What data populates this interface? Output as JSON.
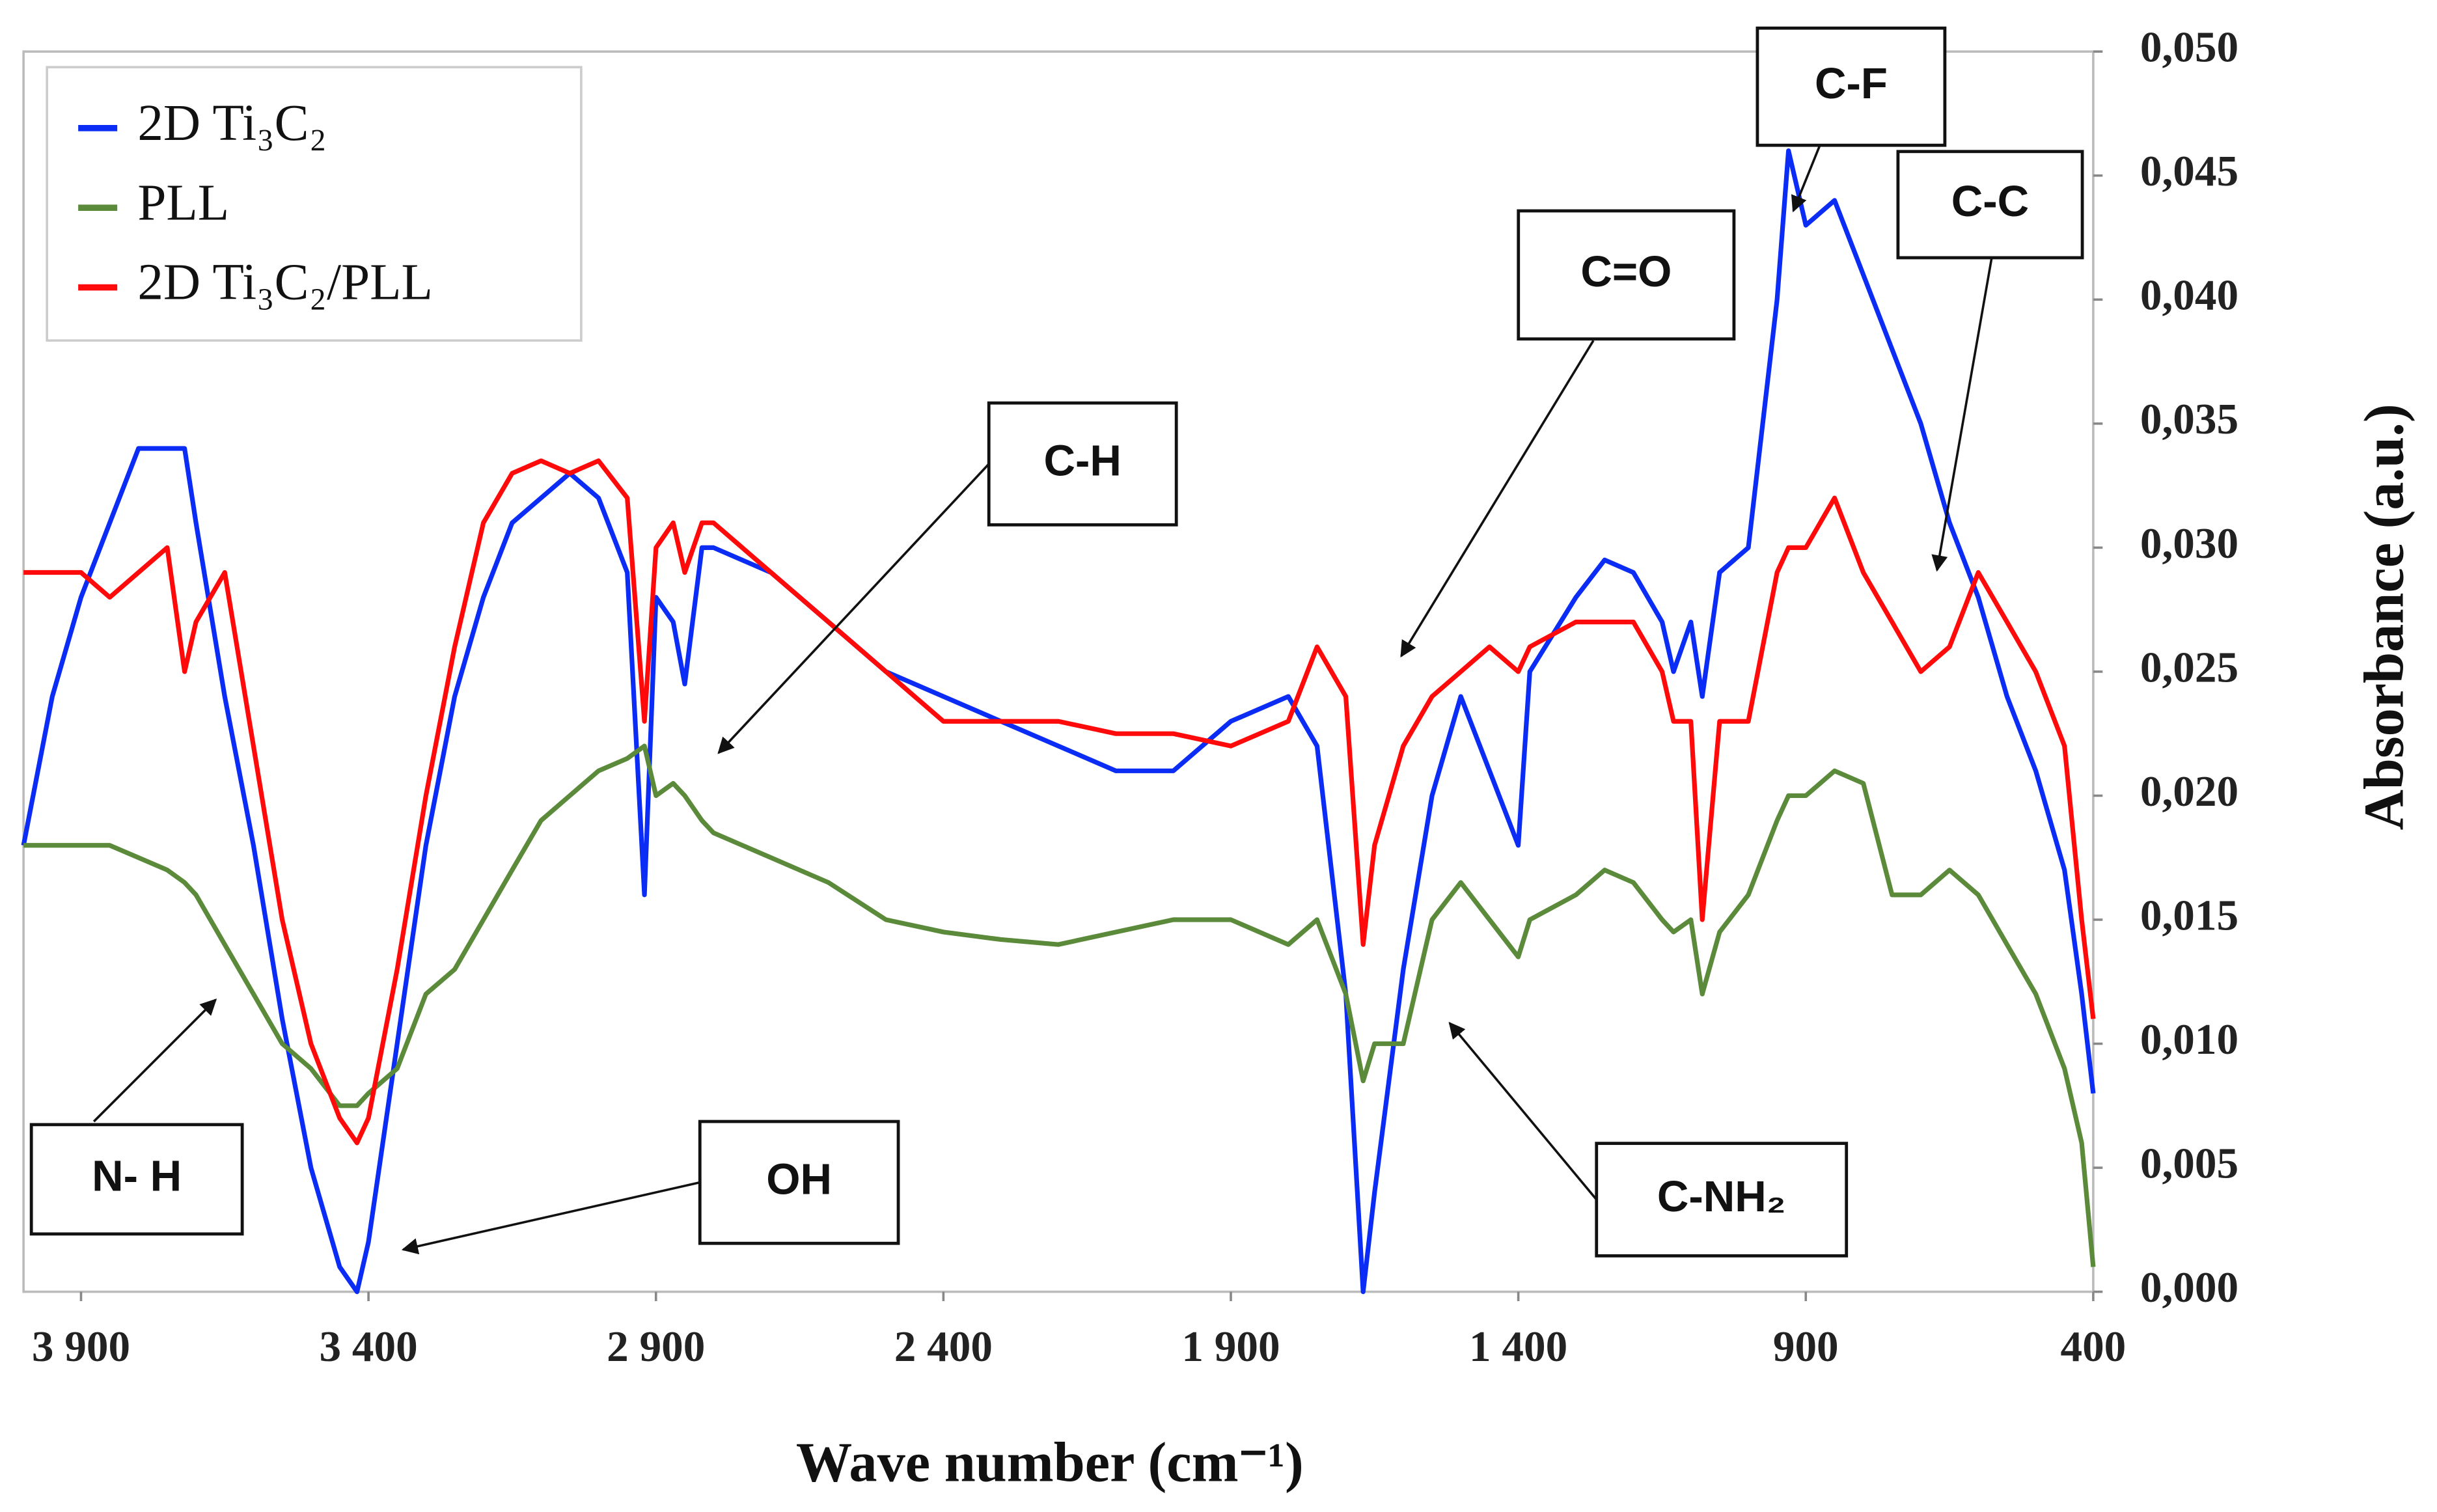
{
  "chart_data": {
    "type": "line",
    "xlabel": "Wave number (cm⁻¹)",
    "ylabel": "Absorbance (a.u.)",
    "xlim": [
      4000,
      400
    ],
    "ylim": [
      0,
      0.05
    ],
    "xticks": [
      {
        "value": 3900,
        "label": "3 900"
      },
      {
        "value": 3400,
        "label": "3 400"
      },
      {
        "value": 2900,
        "label": "2 900"
      },
      {
        "value": 2400,
        "label": "2 400"
      },
      {
        "value": 1900,
        "label": "1 900"
      },
      {
        "value": 1400,
        "label": "1 400"
      },
      {
        "value": 900,
        "label": "900"
      },
      {
        "value": 400,
        "label": "400"
      }
    ],
    "yticks": [
      {
        "value": 0,
        "label": "0,000"
      },
      {
        "value": 0.005,
        "label": "0,005"
      },
      {
        "value": 0.01,
        "label": "0,010"
      },
      {
        "value": 0.015,
        "label": "0,015"
      },
      {
        "value": 0.02,
        "label": "0,020"
      },
      {
        "value": 0.025,
        "label": "0,025"
      },
      {
        "value": 0.03,
        "label": "0,030"
      },
      {
        "value": 0.035,
        "label": "0,035"
      },
      {
        "value": 0.04,
        "label": "0,040"
      },
      {
        "value": 0.045,
        "label": "0,045"
      },
      {
        "value": 0.05,
        "label": "0,050"
      }
    ],
    "legend": "upper left",
    "annotations": [
      "N- H",
      "OH",
      "C-H",
      "C=O",
      "C-F",
      "C-C",
      "C-NH₂"
    ],
    "x": [
      4000,
      3950,
      3900,
      3850,
      3800,
      3750,
      3720,
      3700,
      3650,
      3600,
      3550,
      3500,
      3450,
      3420,
      3400,
      3350,
      3300,
      3250,
      3200,
      3150,
      3100,
      3050,
      3000,
      2950,
      2920,
      2900,
      2870,
      2850,
      2820,
      2800,
      2700,
      2600,
      2500,
      2400,
      2300,
      2200,
      2100,
      2000,
      1900,
      1800,
      1750,
      1700,
      1670,
      1650,
      1600,
      1550,
      1500,
      1450,
      1400,
      1380,
      1300,
      1250,
      1200,
      1150,
      1130,
      1100,
      1080,
      1050,
      1000,
      950,
      930,
      900,
      850,
      800,
      750,
      700,
      650,
      600,
      550,
      500,
      450,
      420,
      400
    ],
    "series": [
      {
        "name": "2D Ti₃C₂",
        "color": "#0a2cf5",
        "values": [
          0.018,
          0.024,
          0.028,
          0.031,
          0.034,
          0.034,
          0.034,
          0.031,
          0.024,
          0.018,
          0.011,
          0.005,
          0.001,
          0,
          0.002,
          0.01,
          0.018,
          0.024,
          0.028,
          0.031,
          0.032,
          0.033,
          0.032,
          0.029,
          0.016,
          0.028,
          0.027,
          0.0245,
          0.03,
          0.03,
          0.029,
          0.027,
          0.025,
          0.024,
          0.023,
          0.022,
          0.021,
          0.021,
          0.023,
          0.024,
          0.022,
          0.012,
          0,
          0.004,
          0.013,
          0.02,
          0.024,
          0.021,
          0.018,
          0.025,
          0.028,
          0.0295,
          0.029,
          0.027,
          0.025,
          0.027,
          0.024,
          0.029,
          0.03,
          0.04,
          0.046,
          0.043,
          0.044,
          0.041,
          0.038,
          0.035,
          0.031,
          0.028,
          0.024,
          0.021,
          0.017,
          0.012,
          0.008
        ]
      },
      {
        "name": "PLL",
        "color": "#5a8a3a",
        "values": [
          0.018,
          0.018,
          0.018,
          0.018,
          0.0175,
          0.017,
          0.0165,
          0.016,
          0.014,
          0.012,
          0.01,
          0.009,
          0.0075,
          0.0075,
          0.008,
          0.009,
          0.012,
          0.013,
          0.015,
          0.017,
          0.019,
          0.02,
          0.021,
          0.0215,
          0.022,
          0.02,
          0.0205,
          0.02,
          0.019,
          0.0185,
          0.0175,
          0.0165,
          0.015,
          0.0145,
          0.0142,
          0.014,
          0.0145,
          0.015,
          0.015,
          0.014,
          0.015,
          0.012,
          0.0085,
          0.01,
          0.01,
          0.015,
          0.0165,
          0.015,
          0.0135,
          0.015,
          0.016,
          0.017,
          0.0165,
          0.015,
          0.0145,
          0.015,
          0.012,
          0.0145,
          0.016,
          0.019,
          0.02,
          0.02,
          0.021,
          0.0205,
          0.016,
          0.016,
          0.017,
          0.016,
          0.014,
          0.012,
          0.009,
          0.006,
          0.001
        ]
      },
      {
        "name": "2D Ti₃C₂/PLL",
        "color": "#ff0a0a",
        "values": [
          0.029,
          0.029,
          0.029,
          0.028,
          0.029,
          0.03,
          0.025,
          0.027,
          0.029,
          0.022,
          0.015,
          0.01,
          0.007,
          0.006,
          0.007,
          0.013,
          0.02,
          0.026,
          0.031,
          0.033,
          0.0335,
          0.033,
          0.0335,
          0.032,
          0.023,
          0.03,
          0.031,
          0.029,
          0.031,
          0.031,
          0.029,
          0.027,
          0.025,
          0.023,
          0.023,
          0.023,
          0.0225,
          0.0225,
          0.022,
          0.023,
          0.026,
          0.024,
          0.014,
          0.018,
          0.022,
          0.024,
          0.025,
          0.026,
          0.025,
          0.026,
          0.027,
          0.027,
          0.027,
          0.025,
          0.023,
          0.023,
          0.015,
          0.023,
          0.023,
          0.029,
          0.03,
          0.03,
          0.032,
          0.029,
          0.027,
          0.025,
          0.026,
          0.029,
          0.027,
          0.025,
          0.022,
          0.015,
          0.011
        ]
      }
    ]
  }
}
